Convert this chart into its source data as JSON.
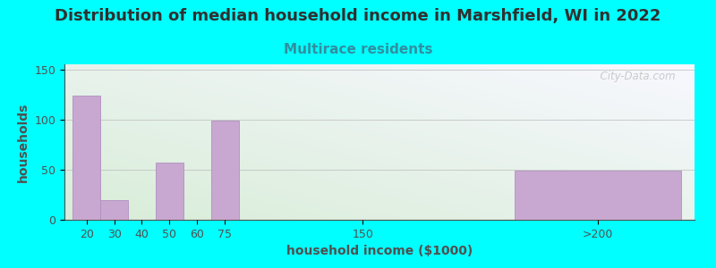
{
  "title": "Distribution of median household income in Marshfield, WI in 2022",
  "subtitle": "Multirace residents",
  "xlabel": "household income ($1000)",
  "ylabel": "households",
  "background_color": "#00FFFF",
  "plot_bg_top_left": "#d8edd8",
  "plot_bg_bottom_right": "#f8f8ff",
  "bar_color": "#c8a8d0",
  "bar_edge_color": "#b090c0",
  "title_color": "#303030",
  "subtitle_color": "#3090a0",
  "axis_color": "#505050",
  "watermark": "  City-Data.com",
  "categories": [
    "20",
    "30",
    "40",
    "50",
    "60",
    "75",
    "150",
    ">200"
  ],
  "values": [
    124,
    20,
    0,
    57,
    0,
    99,
    0,
    49
  ],
  "bar_positions": [
    0,
    1,
    2,
    3,
    4,
    5,
    10,
    16
  ],
  "bar_widths": [
    1,
    1,
    1,
    1,
    1,
    1,
    1,
    6
  ],
  "tick_labels": [
    "20",
    "30",
    "40",
    "50",
    "60",
    "75",
    "150",
    ">200"
  ],
  "ylim": [
    0,
    155
  ],
  "yticks": [
    0,
    50,
    100,
    150
  ],
  "xlim": [
    -0.3,
    22.5
  ],
  "title_fontsize": 13,
  "subtitle_fontsize": 11,
  "label_fontsize": 10,
  "tick_fontsize": 9
}
